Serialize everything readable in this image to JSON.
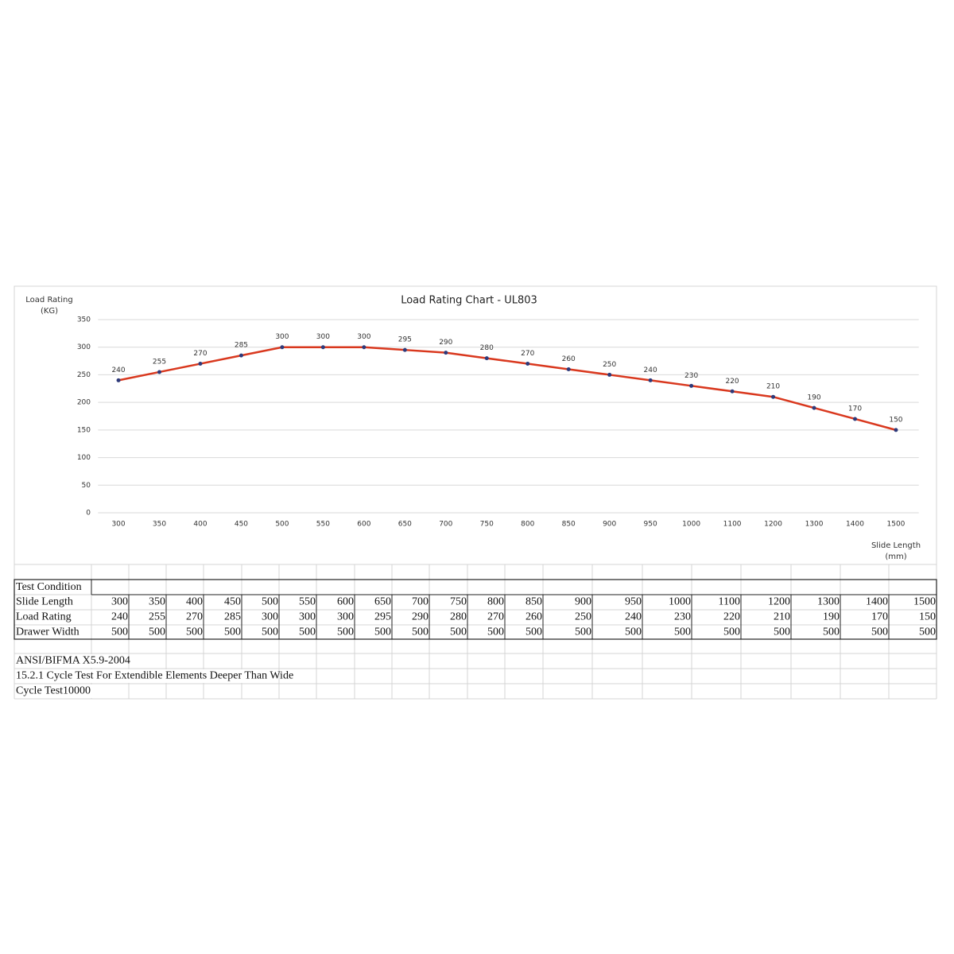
{
  "chart_data": {
    "type": "line",
    "title": "Load Rating Chart - UL803",
    "y_label": "Load Rating",
    "y_unit": "(KG)",
    "x_label": "Slide Length",
    "x_unit": "(mm)",
    "categories": [
      300,
      350,
      400,
      450,
      500,
      550,
      600,
      650,
      700,
      750,
      800,
      850,
      900,
      950,
      1000,
      1100,
      1200,
      1300,
      1400,
      1500
    ],
    "values": [
      240,
      255,
      270,
      285,
      300,
      300,
      300,
      295,
      290,
      280,
      270,
      260,
      250,
      240,
      230,
      220,
      210,
      190,
      170,
      150
    ],
    "color": "#d9381e",
    "marker_color": "#2e3a7a",
    "ylim": [
      0,
      350
    ],
    "yticks": [
      0,
      50,
      100,
      150,
      200,
      250,
      300,
      350
    ],
    "grid": true
  },
  "table": {
    "header": "Test Condition",
    "rows": [
      [
        "Slide Length",
        300,
        350,
        400,
        450,
        500,
        550,
        600,
        650,
        700,
        750,
        800,
        850,
        900,
        950,
        1000,
        1100,
        1200,
        1300,
        1400,
        1500
      ],
      [
        "Load Rating",
        240,
        255,
        270,
        285,
        300,
        300,
        300,
        295,
        290,
        280,
        270,
        260,
        250,
        240,
        230,
        220,
        210,
        190,
        170,
        150
      ],
      [
        "Drawer Width",
        500,
        500,
        500,
        500,
        500,
        500,
        500,
        500,
        500,
        500,
        500,
        500,
        500,
        500,
        500,
        500,
        500,
        500,
        500,
        500
      ]
    ]
  },
  "notes": [
    "ANSI/BIFMA X5.9-2004",
    "15.2.1 Cycle Test For Extendible Elements Deeper Than Wide",
    "Cycle Test10000"
  ]
}
